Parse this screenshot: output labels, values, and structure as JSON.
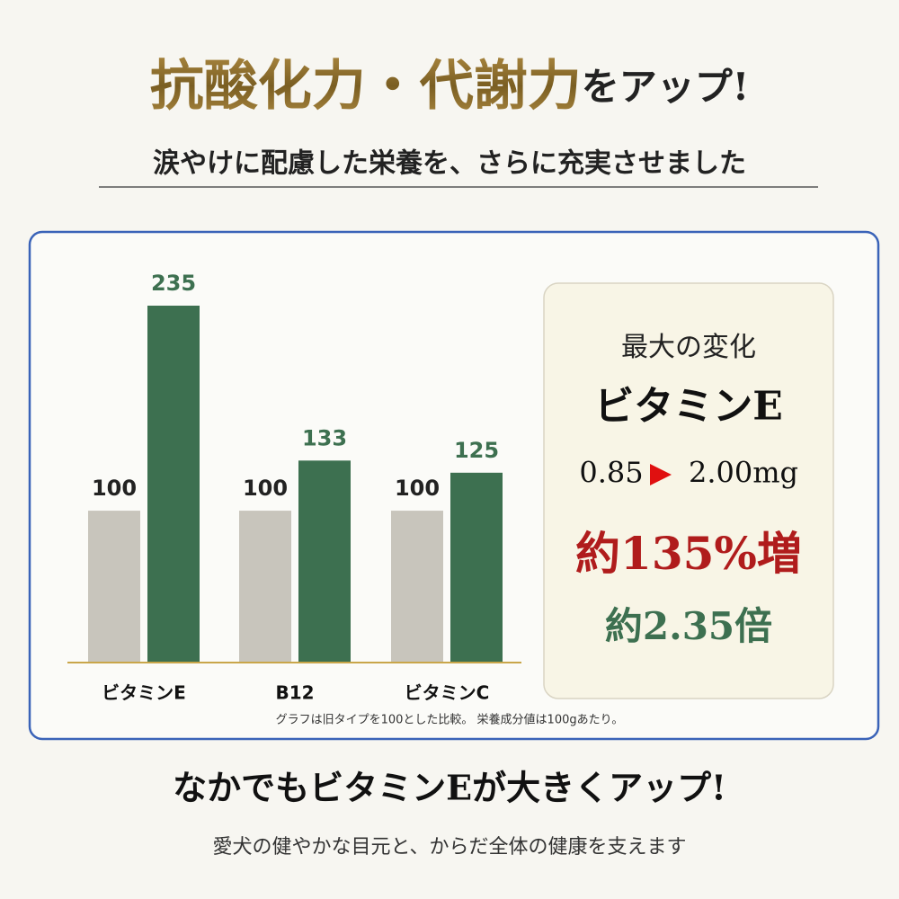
{
  "header": {
    "title_main": "抗酸化力・代謝力",
    "title_suffix": "をアップ!",
    "subtitle": "涙やけに配慮した栄養を、さらに充実させました"
  },
  "chart_data": {
    "type": "bar",
    "categories": [
      "ビタミンE",
      "B12",
      "ビタミンC"
    ],
    "series": [
      {
        "color": "#c8c5bc",
        "values": [
          100,
          100,
          100
        ]
      },
      {
        "color": "#3d7050",
        "values": [
          235,
          133,
          125
        ]
      }
    ],
    "note": "グラフは旧タイプを100とした比較。 栄養成分値は100gあたり。"
  },
  "highlight": {
    "heading": "最大の変化",
    "nutrient": "ビタミンE",
    "before": "0.85",
    "after": "2.00mg",
    "increase": "約135%増",
    "ratio": "約2.35倍"
  },
  "footer": {
    "headline": "なかでもビタミンEが大きくアップ!",
    "tagline": "愛犬の健やかな目元と、からだ全体の健康を支えます"
  }
}
